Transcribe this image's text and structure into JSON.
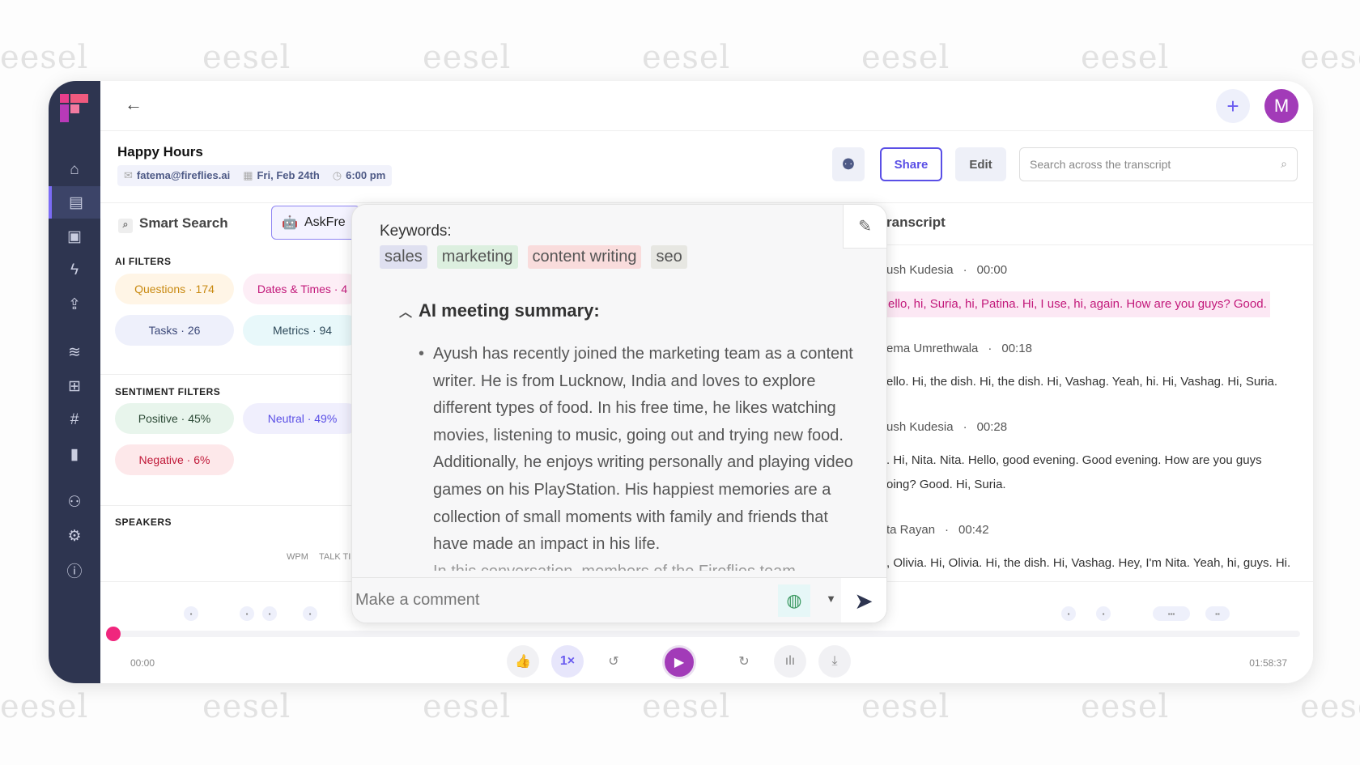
{
  "watermark": "eesel",
  "header": {
    "back_icon": "arrow-left-icon",
    "add_icon": "plus-icon",
    "avatar_initial": "M"
  },
  "meeting": {
    "title": "Happy Hours",
    "email": "fatema@fireflies.ai",
    "date": "Fri, Feb 24th",
    "time": "6:00 pm"
  },
  "actions": {
    "share": "Share",
    "edit": "Edit",
    "search_placeholder": "Search across the transcript"
  },
  "tabs": {
    "smart_search": "Smart Search",
    "ask": "AskFre",
    "transcript": "ranscript"
  },
  "ai_filters": {
    "title": "AI FILTERS",
    "items": [
      {
        "label": "Questions · 174",
        "color": "#c98a12",
        "bg": "#fff5e6"
      },
      {
        "label": "Dates & Times · 4",
        "color": "#c2187a",
        "bg": "#fdeef6"
      },
      {
        "label": "Tasks · 26",
        "color": "#3d4a7a",
        "bg": "#eef0fb"
      },
      {
        "label": "Metrics · 94",
        "color": "#2e4a5a",
        "bg": "#e8f8fa"
      }
    ]
  },
  "sentiment_filters": {
    "title": "SENTIMENT FILTERS",
    "items": [
      {
        "label": "Positive · 45%",
        "color": "#2c4a36",
        "bg": "#e8f5ec"
      },
      {
        "label": "Neutral · 49%",
        "color": "#5a4fe6",
        "bg": "#f0effd"
      },
      {
        "label": "Negative · 6%",
        "color": "#c01838",
        "bg": "#fde8ea"
      }
    ]
  },
  "speakers": {
    "title": "SPEAKERS",
    "col_wpm": "WPM",
    "col_talk": "TALK TI"
  },
  "popup": {
    "keywords_label": "Keywords:",
    "keywords": [
      {
        "text": "sales",
        "bg": "#dfe0f0"
      },
      {
        "text": "marketing",
        "bg": "#dcefdf"
      },
      {
        "text": "content writing",
        "bg": "#f9dcdc"
      },
      {
        "text": "seo",
        "bg": "#e7e7e2"
      }
    ],
    "summary_title": "AI meeting summary:",
    "summary": "Ayush has recently joined the marketing team as a content writer. He is from Lucknow, India and loves to explore different types of food. In his free time, he likes watching movies, listening to music, going out and trying new food. Additionally, he enjoys writing personally and playing video games on his PlayStation. His happiest memories are a collection of small moments with family and friends that have made an impact in his life.",
    "summary_next": "In this conversation, members of the Fireflies team",
    "comment_placeholder": "Make a comment"
  },
  "transcript": [
    {
      "speaker": "ush Kudesia",
      "time": "00:00",
      "text": "ello, hi, Suria, hi, Patina. Hi, I use, hi, again. How are you guys? Good.",
      "highlight": true
    },
    {
      "speaker": "ema Umrethwala",
      "time": "00:18",
      "text": "ello. Hi, the dish. Hi, the dish. Hi, Vashag. Yeah, hi. Hi, Vashag. Hi, Suria."
    },
    {
      "speaker": "ush Kudesia",
      "time": "00:28",
      "text": ". Hi, Nita. Nita. Hello, good evening. Good evening. How are you guys",
      "text2": "oing? Good. Hi, Suria."
    },
    {
      "speaker": "ta Rayan",
      "time": "00:42",
      "text": ", Olivia. Hi, Olivia. Hi, the dish. Hi, Vashag. Hey, I'm Nita. Yeah, hi, guys. Hi."
    }
  ],
  "player": {
    "current": "00:00",
    "duration": "01:58:37",
    "speed": "1×",
    "progress": 0,
    "rewind": "5",
    "forward": "15",
    "accent": "#a23bb8"
  }
}
